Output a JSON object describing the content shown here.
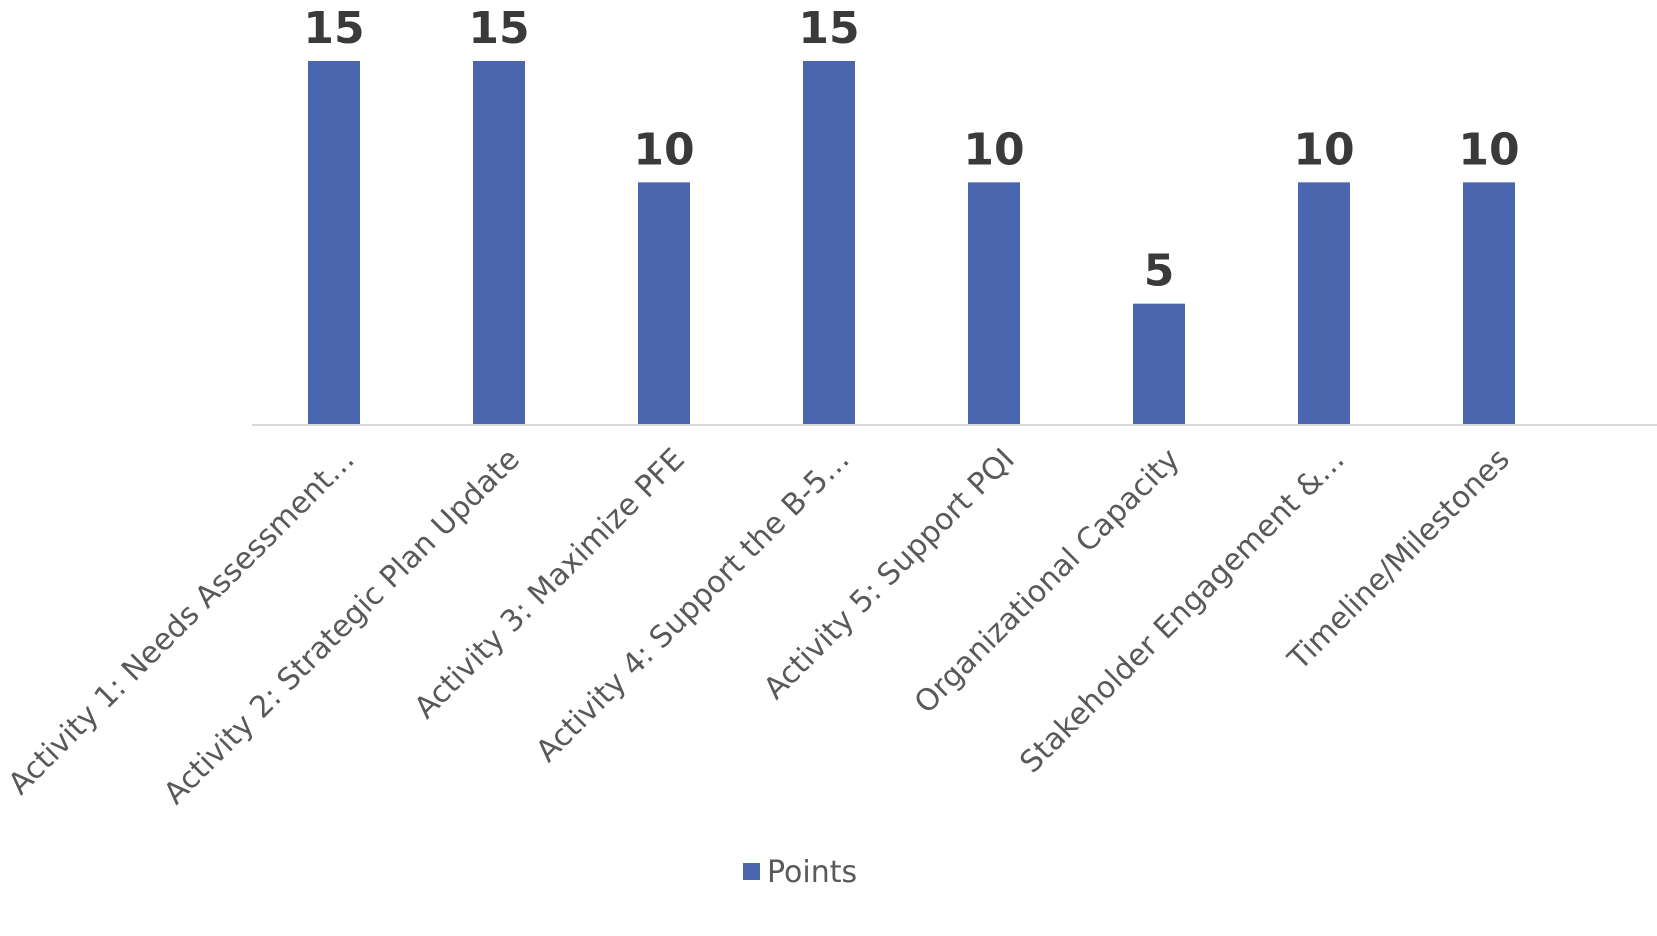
{
  "chart_data": {
    "type": "bar",
    "categories": [
      "Activity 1: Needs Assessment…",
      "Activity 2: Strategic Plan Update",
      "Activity 3: Maximize PFE",
      "Activity 4: Support the B-5…",
      "Activity 5: Support PQI",
      "Organizational Capacity",
      "Stakeholder Engagement  &…",
      "Timeline/Milestones"
    ],
    "series": [
      {
        "name": "Points",
        "color": "#4a66ae",
        "values": [
          15,
          15,
          10,
          15,
          10,
          5,
          10,
          10
        ]
      }
    ],
    "ylim": [
      0,
      15
    ],
    "grid": false,
    "legend_position": "bottom",
    "data_labels": true
  }
}
